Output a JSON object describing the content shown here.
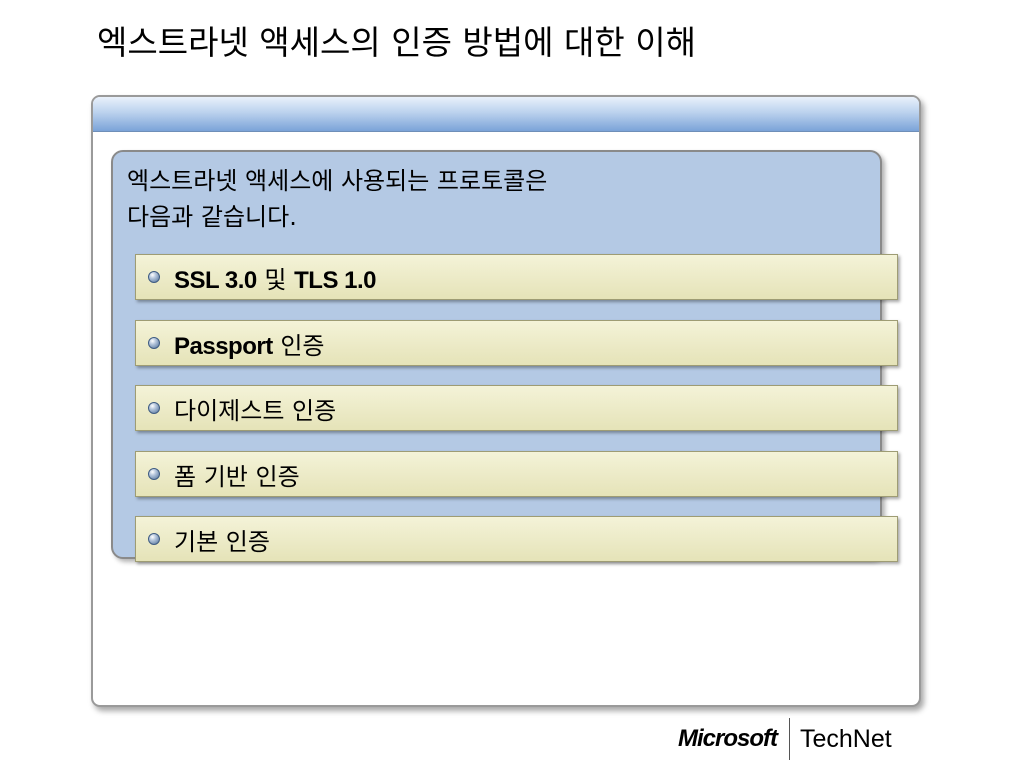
{
  "slide": {
    "title": "엑스트라넷 액세스의 인증 방법에 대한 이해",
    "intro_line1": "엑스트라넷 액세스에 사용되는 프로토콜은",
    "intro_line2": "다음과 같습니다.",
    "items": [
      {
        "bold": "SSL 3.0",
        "mid": " 및 ",
        "bold2": "TLS 1.0",
        "rest": ""
      },
      {
        "bold": "Passport",
        "mid": " 인증",
        "bold2": "",
        "rest": ""
      },
      {
        "bold": "",
        "mid": "다이제스트 인증",
        "bold2": "",
        "rest": ""
      },
      {
        "bold": "",
        "mid": "폼 기반 인증",
        "bold2": "",
        "rest": ""
      },
      {
        "bold": "",
        "mid": "기본 인증",
        "bold2": "",
        "rest": ""
      }
    ]
  },
  "branding": {
    "microsoft": "Microsoft",
    "technet": "TechNet"
  },
  "colors": {
    "header_blue": "#7ba3d8",
    "inner_box": "#b4c9e4",
    "item_fill": "#e5e3b8"
  }
}
